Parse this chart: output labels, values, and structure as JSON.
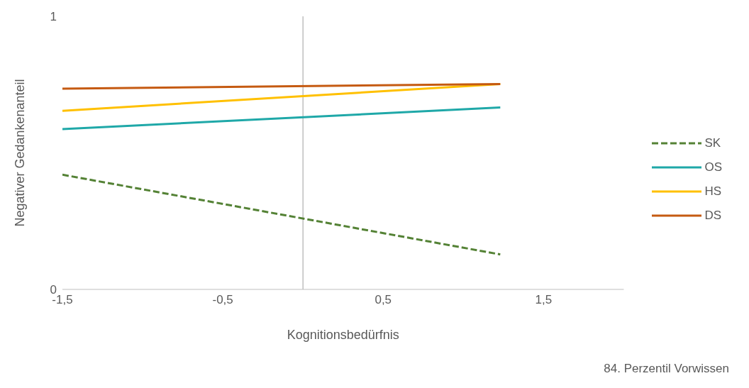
{
  "chart_data": {
    "type": "line",
    "xlabel": "Kognitionsbedürfnis",
    "ylabel": "Negativer Gedankenanteil",
    "x": [
      -1.5,
      1.23
    ],
    "series": [
      {
        "name": "SK",
        "color": "#548235",
        "values": [
          0.42,
          0.128
        ],
        "line_style": "dashed"
      },
      {
        "name": "OS",
        "color": "#1fa8a8",
        "values": [
          0.587,
          0.666
        ]
      },
      {
        "name": "HS",
        "color": "#ffc000",
        "values": [
          0.654,
          0.752
        ]
      },
      {
        "name": "DS",
        "color": "#c55a11",
        "values": [
          0.735,
          0.752
        ]
      }
    ],
    "xlim": [
      -1.5,
      2
    ],
    "xticks": [
      {
        "value": -1.5,
        "label": "-1,5"
      },
      {
        "value": -0.5,
        "label": "-0,5"
      },
      {
        "value": 0.5,
        "label": "0,5"
      },
      {
        "value": 1.5,
        "label": "1,5"
      }
    ],
    "ylim": [
      0,
      1
    ],
    "yticks": [
      0,
      1
    ],
    "ref_lines": [
      {
        "axis": "x",
        "value": 0,
        "color": "#bfbfbf"
      }
    ],
    "grid": false,
    "legend": "right",
    "marker": "none",
    "line_style": "solid",
    "annotations": [
      "84. Perzentil Vorwissen"
    ]
  }
}
